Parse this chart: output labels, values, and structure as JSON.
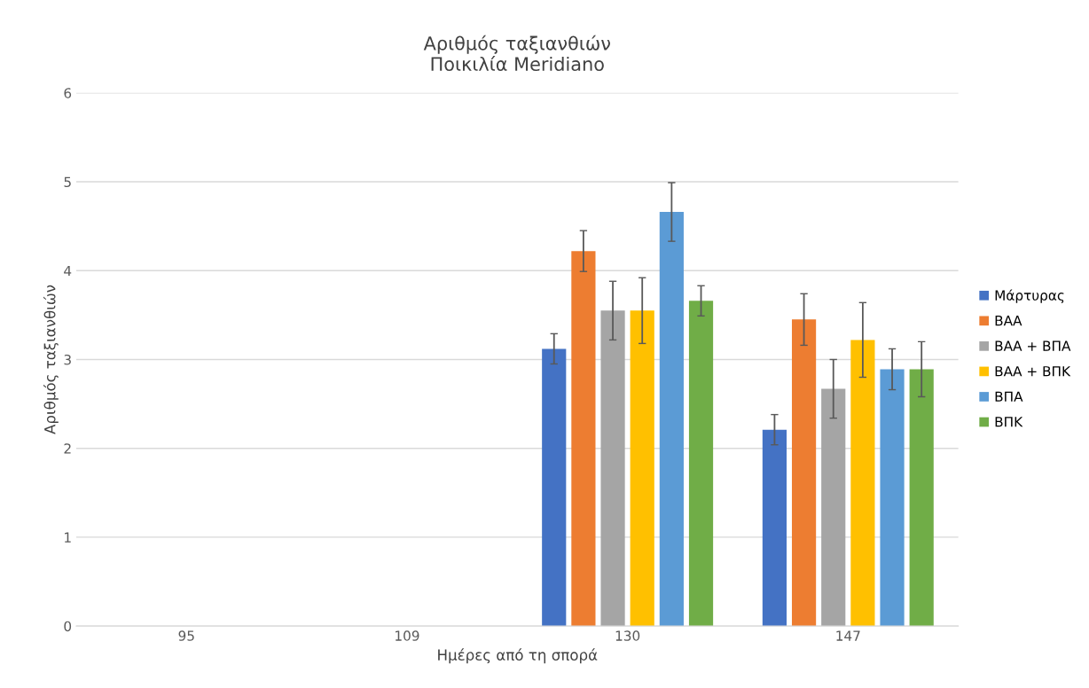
{
  "chart_data": {
    "type": "bar",
    "title": "Αριθμός ταξιανθιών\nΠοικιλία Meridiano",
    "xlabel": "Ημέρες από τη σπορά",
    "ylabel": "Αριθμός ταξιανθιών",
    "categories": [
      "95",
      "109",
      "130",
      "147"
    ],
    "series": [
      {
        "name": "Μάρτυρας",
        "color": "#4472c4",
        "values": [
          null,
          null,
          3.12,
          2.21
        ],
        "errors": [
          null,
          null,
          0.17,
          0.17
        ]
      },
      {
        "name": "ΒΑΑ",
        "color": "#ed7d31",
        "values": [
          null,
          null,
          4.22,
          3.45
        ],
        "errors": [
          null,
          null,
          0.23,
          0.29
        ]
      },
      {
        "name": "ΒΑΑ + ΒΠΑ",
        "color": "#a5a5a5",
        "values": [
          null,
          null,
          3.55,
          2.67
        ],
        "errors": [
          null,
          null,
          0.33,
          0.33
        ]
      },
      {
        "name": "ΒΑΑ + ΒΠΚ",
        "color": "#ffc000",
        "values": [
          null,
          null,
          3.55,
          3.22
        ],
        "errors": [
          null,
          null,
          0.37,
          0.42
        ]
      },
      {
        "name": "ΒΠΑ",
        "color": "#5b9bd5",
        "values": [
          null,
          null,
          4.66,
          2.89
        ],
        "errors": [
          null,
          null,
          0.33,
          0.23
        ]
      },
      {
        "name": "ΒΠΚ",
        "color": "#70ad47",
        "values": [
          null,
          null,
          3.66,
          2.89
        ],
        "errors": [
          null,
          null,
          0.17,
          0.31
        ]
      }
    ],
    "ylim": [
      0,
      6
    ],
    "yticks": [
      0,
      1,
      2,
      3,
      4,
      5,
      6
    ],
    "grid": "y",
    "legend": "right"
  }
}
